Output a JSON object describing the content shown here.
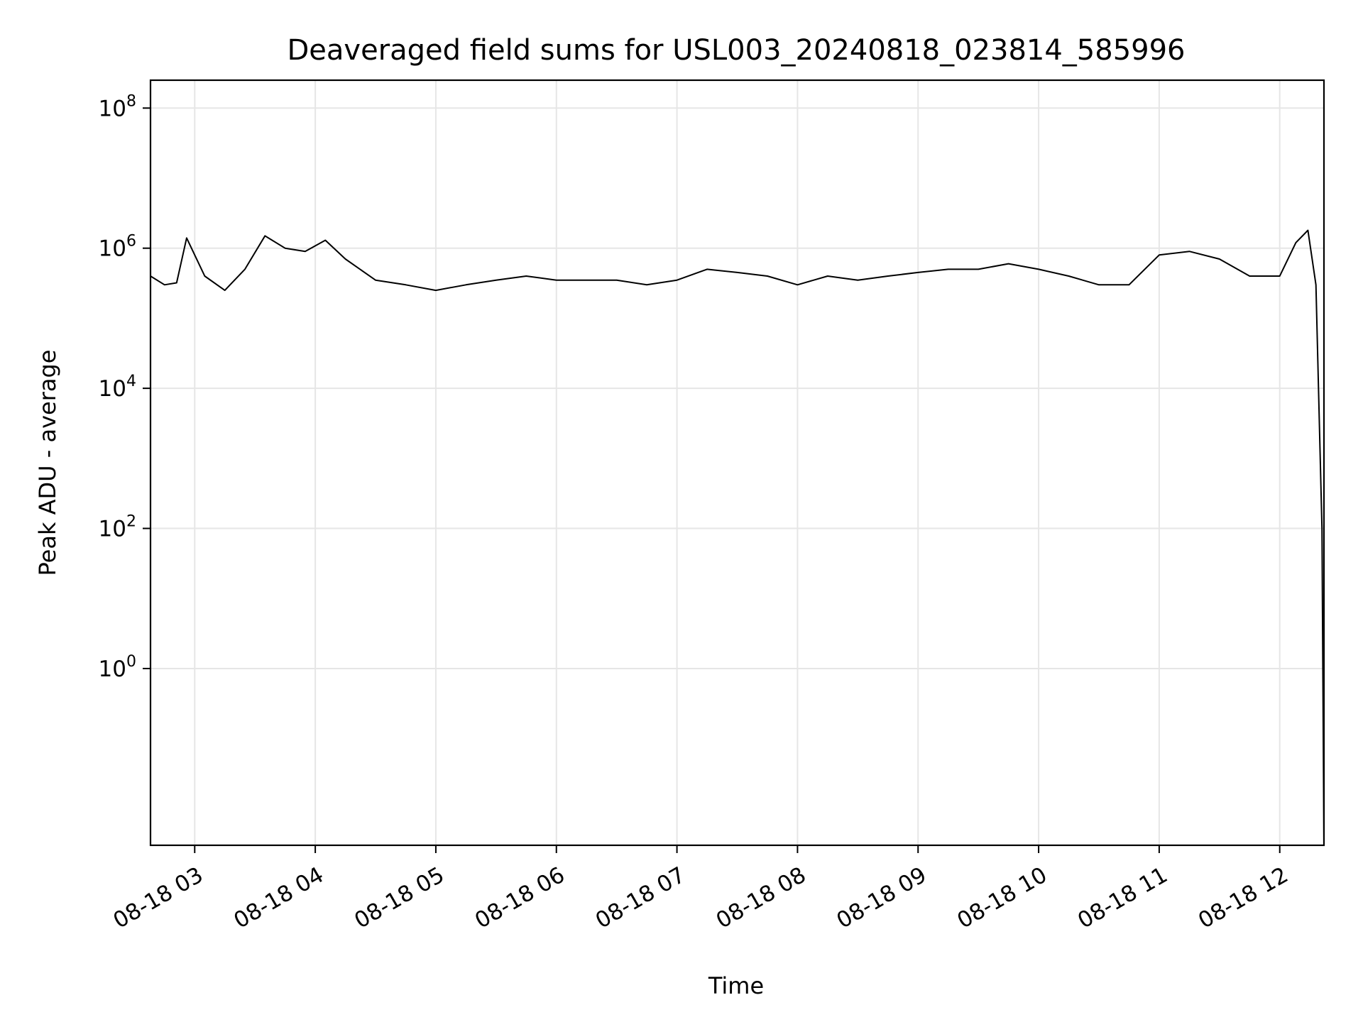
{
  "chart_data": {
    "type": "line",
    "title": "Deaveraged field sums for USL003_20240818_023814_585996",
    "xlabel": "Time",
    "ylabel": "Peak ADU - average",
    "yscale": "log",
    "ylim": [
      0.003,
      250000000.0
    ],
    "xlim": [
      "2024-08-18 02:38",
      "2024-08-18 12:22"
    ],
    "grid": true,
    "legend": "none",
    "line_color": "#000000",
    "x_ticks": [
      {
        "value": "2024-08-18 03:00",
        "label": "08-18 03"
      },
      {
        "value": "2024-08-18 04:00",
        "label": "08-18 04"
      },
      {
        "value": "2024-08-18 05:00",
        "label": "08-18 05"
      },
      {
        "value": "2024-08-18 06:00",
        "label": "08-18 06"
      },
      {
        "value": "2024-08-18 07:00",
        "label": "08-18 07"
      },
      {
        "value": "2024-08-18 08:00",
        "label": "08-18 08"
      },
      {
        "value": "2024-08-18 09:00",
        "label": "08-18 09"
      },
      {
        "value": "2024-08-18 10:00",
        "label": "08-18 10"
      },
      {
        "value": "2024-08-18 11:00",
        "label": "08-18 11"
      },
      {
        "value": "2024-08-18 12:00",
        "label": "08-18 12"
      }
    ],
    "y_ticks": [
      {
        "value": 1,
        "base": "10",
        "exp": "0"
      },
      {
        "value": 100,
        "base": "10",
        "exp": "2"
      },
      {
        "value": 10000,
        "base": "10",
        "exp": "4"
      },
      {
        "value": 1000000,
        "base": "10",
        "exp": "6"
      },
      {
        "value": 100000000,
        "base": "10",
        "exp": "8"
      }
    ],
    "series": [
      {
        "x": [
          "2024-08-18 02:38",
          "2024-08-18 02:45",
          "2024-08-18 02:51",
          "2024-08-18 02:56",
          "2024-08-18 03:05",
          "2024-08-18 03:15",
          "2024-08-18 03:25",
          "2024-08-18 03:35",
          "2024-08-18 03:45",
          "2024-08-18 03:55",
          "2024-08-18 04:05",
          "2024-08-18 04:15",
          "2024-08-18 04:30",
          "2024-08-18 04:45",
          "2024-08-18 05:00",
          "2024-08-18 05:15",
          "2024-08-18 05:30",
          "2024-08-18 05:45",
          "2024-08-18 06:00",
          "2024-08-18 06:15",
          "2024-08-18 06:30",
          "2024-08-18 06:45",
          "2024-08-18 07:00",
          "2024-08-18 07:15",
          "2024-08-18 07:30",
          "2024-08-18 07:45",
          "2024-08-18 08:00",
          "2024-08-18 08:15",
          "2024-08-18 08:30",
          "2024-08-18 08:45",
          "2024-08-18 09:00",
          "2024-08-18 09:15",
          "2024-08-18 09:30",
          "2024-08-18 09:45",
          "2024-08-18 10:00",
          "2024-08-18 10:15",
          "2024-08-18 10:30",
          "2024-08-18 10:45",
          "2024-08-18 11:00",
          "2024-08-18 11:15",
          "2024-08-18 11:30",
          "2024-08-18 11:45",
          "2024-08-18 12:00",
          "2024-08-18 12:08",
          "2024-08-18 12:14",
          "2024-08-18 12:18",
          "2024-08-18 12:21",
          "2024-08-18 12:22"
        ],
        "y": [
          400000,
          300000,
          320000,
          1400000,
          400000,
          250000,
          500000,
          1500000,
          1000000,
          900000,
          1300000,
          700000,
          350000,
          300000,
          250000,
          300000,
          350000,
          400000,
          350000,
          350000,
          350000,
          300000,
          350000,
          500000,
          450000,
          400000,
          300000,
          400000,
          350000,
          400000,
          450000,
          500000,
          500000,
          600000,
          500000,
          400000,
          300000,
          300000,
          800000,
          900000,
          700000,
          400000,
          400000,
          1200000,
          1800000,
          300000,
          100,
          0.003
        ]
      }
    ]
  }
}
